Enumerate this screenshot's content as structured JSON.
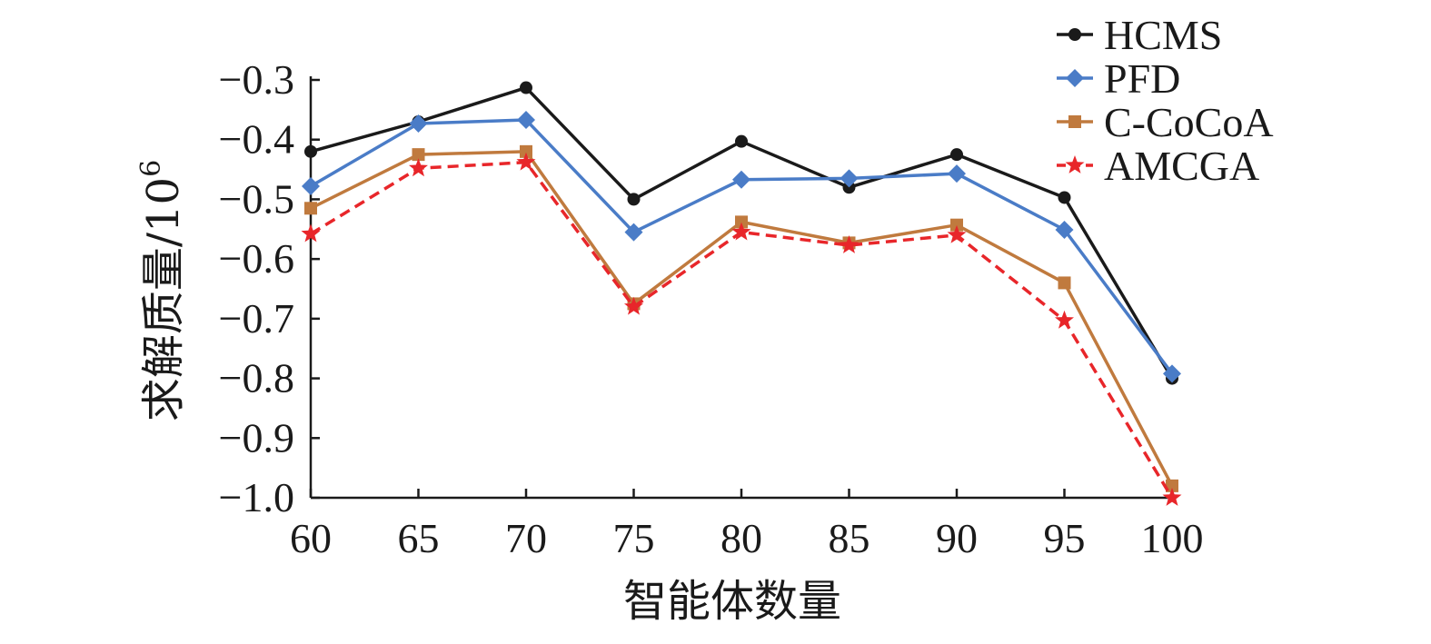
{
  "chart_data": {
    "type": "line",
    "xlabel": "智能体数量",
    "ylabel_main": "求解质量/10",
    "ylabel_exp": "6",
    "x": [
      60,
      65,
      70,
      75,
      80,
      85,
      90,
      95,
      100
    ],
    "x_tick_labels": [
      "60",
      "65",
      "70",
      "75",
      "80",
      "85",
      "90",
      "95",
      "100"
    ],
    "ylim": [
      -1.0,
      -0.3
    ],
    "y_ticks": [
      -0.3,
      -0.4,
      -0.5,
      -0.6,
      -0.7,
      -0.8,
      -0.9,
      -1.0
    ],
    "y_tick_labels": [
      "−0.3",
      "−0.4",
      "−0.5",
      "−0.6",
      "−0.7",
      "−0.8",
      "−0.9",
      "−1.0"
    ],
    "grid": false,
    "legend_position": "top-right",
    "series": [
      {
        "name": "HCMS",
        "color": "#1a1a1a",
        "marker": "circle",
        "dash": "solid",
        "values": [
          -0.42,
          -0.37,
          -0.313,
          -0.5,
          -0.403,
          -0.48,
          -0.425,
          -0.497,
          -0.8
        ]
      },
      {
        "name": "PFD",
        "color": "#4a7cc7",
        "marker": "diamond",
        "dash": "solid",
        "values": [
          -0.478,
          -0.373,
          -0.367,
          -0.555,
          -0.467,
          -0.465,
          -0.457,
          -0.551,
          -0.792
        ]
      },
      {
        "name": "C-CoCoA",
        "color": "#c07a3e",
        "marker": "square",
        "dash": "solid",
        "values": [
          -0.515,
          -0.425,
          -0.42,
          -0.675,
          -0.538,
          -0.573,
          -0.543,
          -0.64,
          -0.98
        ]
      },
      {
        "name": "AMCGA",
        "color": "#e8262a",
        "marker": "star",
        "dash": "dashed",
        "values": [
          -0.558,
          -0.448,
          -0.438,
          -0.68,
          -0.555,
          -0.577,
          -0.56,
          -0.703,
          -1.0
        ]
      }
    ]
  }
}
